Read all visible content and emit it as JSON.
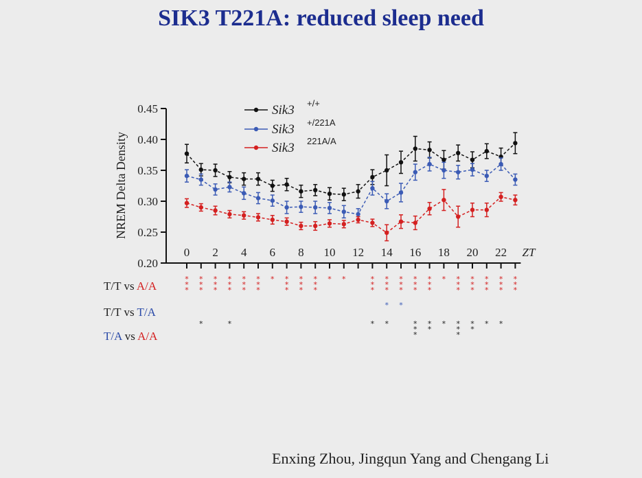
{
  "title": "SIK3 T221A: reduced sleep need",
  "authors": "Enxing Zhou, Jingqun Yang and Chengang Li",
  "colors": {
    "title": "#1c2d8f",
    "wt": "#111111",
    "het": "#3b5bb5",
    "hom": "#d42020"
  },
  "comparisons": {
    "tt_aa": {
      "a": "T/T",
      "vs": "vs",
      "b": "A/A"
    },
    "tt_ta": {
      "a": "T/T",
      "vs": "vs",
      "b": "T/A"
    },
    "ta_aa": {
      "a": "T/A",
      "vs": "vs",
      "b": "A/A"
    }
  },
  "chart_data": {
    "type": "line",
    "ylabel": "NREM Delta Density",
    "xlabel": "ZT",
    "ylim": [
      0.2,
      0.45
    ],
    "yticks": [
      "0.20",
      "0.25",
      "0.30",
      "0.35",
      "0.40",
      "0.45"
    ],
    "xlim": [
      0,
      23
    ],
    "xticks": [
      "0",
      "2",
      "4",
      "6",
      "8",
      "10",
      "12",
      "14",
      "16",
      "18",
      "20",
      "22"
    ],
    "x": [
      0,
      1,
      2,
      3,
      4,
      5,
      6,
      7,
      8,
      9,
      10,
      11,
      12,
      13,
      14,
      15,
      16,
      17,
      18,
      19,
      20,
      21,
      22,
      23
    ],
    "legend_position": "top-center",
    "series": [
      {
        "gene": "Sik3",
        "genotype": "+/+",
        "color": "#111111",
        "values": [
          0.377,
          0.351,
          0.35,
          0.339,
          0.336,
          0.336,
          0.325,
          0.327,
          0.316,
          0.318,
          0.312,
          0.311,
          0.316,
          0.339,
          0.35,
          0.363,
          0.385,
          0.383,
          0.367,
          0.378,
          0.367,
          0.381,
          0.372,
          0.394
        ],
        "errors": [
          0.015,
          0.01,
          0.01,
          0.009,
          0.01,
          0.01,
          0.009,
          0.01,
          0.01,
          0.009,
          0.01,
          0.01,
          0.011,
          0.012,
          0.025,
          0.018,
          0.02,
          0.013,
          0.015,
          0.013,
          0.013,
          0.012,
          0.014,
          0.017
        ]
      },
      {
        "gene": "Sik3",
        "genotype": "+/221A",
        "color": "#3b5bb5",
        "values": [
          0.341,
          0.335,
          0.319,
          0.323,
          0.313,
          0.305,
          0.301,
          0.29,
          0.291,
          0.29,
          0.289,
          0.283,
          0.279,
          0.321,
          0.3,
          0.314,
          0.347,
          0.36,
          0.35,
          0.347,
          0.351,
          0.341,
          0.36,
          0.335
        ],
        "errors": [
          0.01,
          0.009,
          0.009,
          0.008,
          0.01,
          0.009,
          0.009,
          0.01,
          0.009,
          0.01,
          0.009,
          0.01,
          0.009,
          0.011,
          0.012,
          0.015,
          0.013,
          0.011,
          0.013,
          0.011,
          0.01,
          0.009,
          0.01,
          0.009
        ]
      },
      {
        "gene": "Sik3",
        "genotype": "221A/A",
        "color": "#d42020",
        "values": [
          0.297,
          0.29,
          0.285,
          0.279,
          0.277,
          0.274,
          0.27,
          0.267,
          0.26,
          0.26,
          0.264,
          0.263,
          0.27,
          0.265,
          0.249,
          0.267,
          0.265,
          0.288,
          0.302,
          0.275,
          0.286,
          0.286,
          0.307,
          0.302
        ],
        "errors": [
          0.007,
          0.006,
          0.007,
          0.006,
          0.006,
          0.006,
          0.007,
          0.006,
          0.006,
          0.007,
          0.006,
          0.006,
          0.005,
          0.006,
          0.013,
          0.011,
          0.011,
          0.01,
          0.017,
          0.017,
          0.011,
          0.011,
          0.007,
          0.008
        ]
      }
    ],
    "significance": {
      "tt_aa": {
        "color": "#d42020",
        "stars": [
          3,
          3,
          3,
          3,
          3,
          3,
          1,
          3,
          3,
          3,
          1,
          1,
          0,
          3,
          3,
          3,
          3,
          3,
          1,
          3,
          3,
          3,
          3,
          3
        ]
      },
      "tt_ta": {
        "color": "#3b5bb5",
        "stars": [
          0,
          0,
          0,
          0,
          0,
          0,
          0,
          0,
          0,
          0,
          0,
          0,
          0,
          0,
          1,
          1,
          0,
          0,
          0,
          0,
          0,
          0,
          0,
          0
        ]
      },
      "ta_aa": {
        "color": "#222222",
        "stars": [
          0,
          1,
          0,
          1,
          0,
          0,
          0,
          0,
          0,
          0,
          0,
          0,
          0,
          1,
          1,
          0,
          3,
          2,
          1,
          3,
          2,
          1,
          1,
          0
        ]
      }
    }
  }
}
